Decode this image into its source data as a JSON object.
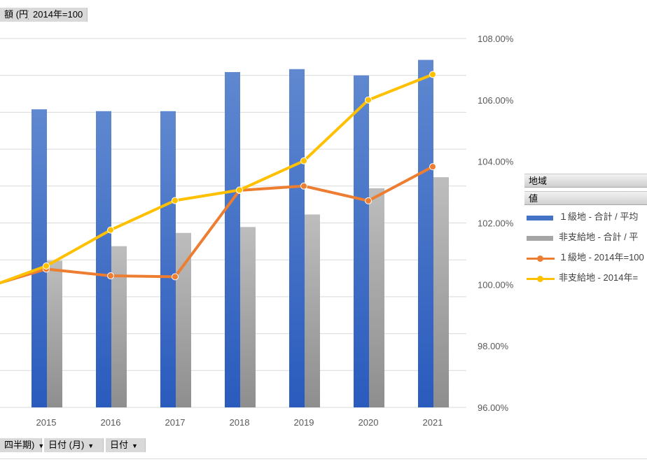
{
  "field_buttons_top": [
    {
      "id": "value-field",
      "label": "額 (円)"
    },
    {
      "id": "index-field",
      "label": "2014年=100"
    }
  ],
  "field_buttons_bottom": [
    {
      "id": "half-year",
      "label": "四半期)",
      "dropdown": "▼"
    },
    {
      "id": "date-month",
      "label": "日付 (月)",
      "dropdown": "▼"
    },
    {
      "id": "date",
      "label": "日付",
      "dropdown": "▼"
    }
  ],
  "legend": {
    "header_region": "地域",
    "header_values": "値",
    "items": [
      {
        "label": "１級地 - 合計 / 平均",
        "kind": "bar",
        "color": "#4472c4"
      },
      {
        "label": "非支給地 - 合計 / 平",
        "kind": "bar",
        "color": "#a5a5a5"
      },
      {
        "label": "１級地 - 2014年=100",
        "kind": "line",
        "color": "#ed7d31"
      },
      {
        "label": "非支給地 - 2014年=",
        "kind": "line",
        "color": "#ffc000"
      }
    ]
  },
  "chart_data": {
    "type": "bar",
    "categories": [
      "2015",
      "2016",
      "2017",
      "2018",
      "2019",
      "2020",
      "2021"
    ],
    "y2_ticks": [
      "96.00%",
      "98.00%",
      "100.00%",
      "102.00%",
      "104.00%",
      "106.00%",
      "108.00%"
    ],
    "y2_range": [
      96,
      108
    ],
    "grid": true,
    "legend_position": "right",
    "series": [
      {
        "name": "１級地 - 合計 / 平均",
        "type": "bar",
        "axis": "left",
        "color": "#4472c4",
        "values": [
          0.808,
          0.803,
          0.803,
          0.909,
          0.917,
          0.9,
          0.942
        ]
      },
      {
        "name": "非支給地 - 合計 / 平",
        "type": "bar",
        "axis": "left",
        "color": "#a5a5a5",
        "values": [
          0.398,
          0.437,
          0.473,
          0.489,
          0.523,
          0.594,
          0.624
        ]
      },
      {
        "name": "１級地 - 2014年=100",
        "type": "line",
        "axis": "right",
        "color": "#ed7d31",
        "start": 100.05,
        "values": [
          100.5,
          100.28,
          100.25,
          103.06,
          103.2,
          102.72,
          103.83
        ]
      },
      {
        "name": "非支給地 - 2014年=",
        "type": "line",
        "axis": "right",
        "color": "#ffc000",
        "start": 100.05,
        "values": [
          100.6,
          101.77,
          102.73,
          103.07,
          104.02,
          106.0,
          106.83
        ]
      }
    ],
    "left_axis_range": [
      0,
      1
    ]
  }
}
